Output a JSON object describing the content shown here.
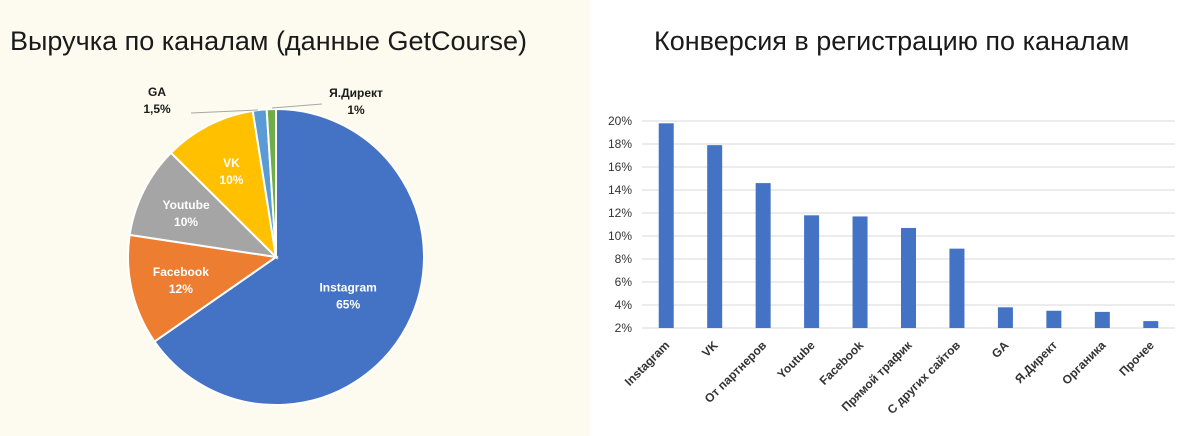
{
  "chart_data": [
    {
      "type": "pie",
      "title": "Выручка по каналам (данные GetCourse)",
      "slices": [
        {
          "label": "Instagram",
          "value": 65,
          "value_label": "65%",
          "color": "#4472c4",
          "label_color": "#ffffff"
        },
        {
          "label": "Facebook",
          "value": 12,
          "value_label": "12%",
          "color": "#ed7d31",
          "label_color": "#ffffff"
        },
        {
          "label": "Youtube",
          "value": 10,
          "value_label": "10%",
          "color": "#a5a5a5",
          "label_color": "#ffffff"
        },
        {
          "label": "VK",
          "value": 10,
          "value_label": "10%",
          "color": "#ffc000",
          "label_color": "#ffffff"
        },
        {
          "label": "GA",
          "value": 1.5,
          "value_label": "1,5%",
          "color": "#5b9bd5",
          "label_color": "#1a1a1a"
        },
        {
          "label": "Я.Директ",
          "value": 1,
          "value_label": "1%",
          "color": "#70ad47",
          "label_color": "#1a1a1a"
        }
      ]
    },
    {
      "type": "bar",
      "title": "Конверсия в регистрацию по каналам",
      "categories": [
        "Instagram",
        "VK",
        "От партнеров",
        "Youtube",
        "Facebook",
        "Прямой трафик",
        "С других сайтов",
        "GA",
        "Я.Директ",
        "Органика",
        "Прочее"
      ],
      "values": [
        19.8,
        17.9,
        14.6,
        11.8,
        11.7,
        10.7,
        8.9,
        3.8,
        3.5,
        3.4,
        2.6
      ],
      "ylim": [
        2,
        20
      ],
      "yticks": [
        "2%",
        "4%",
        "6%",
        "8%",
        "10%",
        "12%",
        "14%",
        "16%",
        "18%",
        "20%"
      ],
      "grid": true,
      "color": "#4472c4"
    }
  ]
}
